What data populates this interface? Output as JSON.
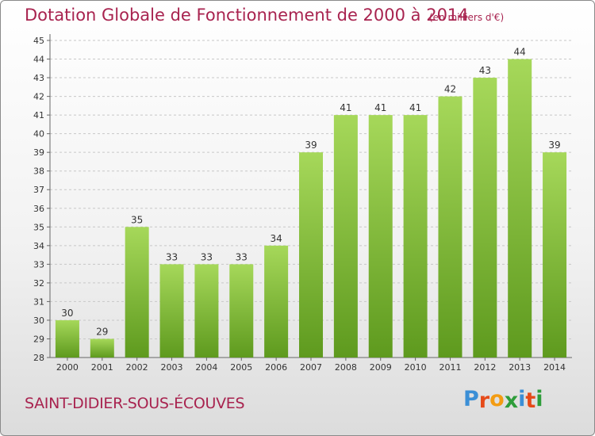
{
  "header": {
    "title": "Dotation Globale de Fonctionnement de 2000 à 2014",
    "unit": "(en milliers d'€)"
  },
  "footer": {
    "commune": "SAINT-DIDIER-SOUS-ÉCOUVES",
    "logo_letters": [
      "P",
      "r",
      "o",
      "x",
      "i",
      "t",
      "i"
    ],
    "logo_colors": [
      "#3b8fd6",
      "#e64a19",
      "#f39c12",
      "#2e9d3a",
      "#3b8fd6",
      "#e64a19",
      "#2e9d3a"
    ]
  },
  "colors": {
    "bar_top": "#a6d85a",
    "bar_bottom": "#5e9a1e",
    "grid": "#c8c8c8",
    "text": "#333333",
    "title": "#a8234f"
  },
  "chart_data": {
    "type": "bar",
    "categories": [
      "2000",
      "2001",
      "2002",
      "2003",
      "2004",
      "2005",
      "2006",
      "2007",
      "2008",
      "2009",
      "2010",
      "2011",
      "2012",
      "2013",
      "2014"
    ],
    "values": [
      30,
      29,
      35,
      33,
      33,
      33,
      34,
      39,
      41,
      41,
      41,
      42,
      43,
      44,
      39
    ],
    "ylim": [
      28,
      45
    ],
    "yticks": [
      28,
      29,
      30,
      31,
      32,
      33,
      34,
      35,
      36,
      37,
      38,
      39,
      40,
      41,
      42,
      43,
      44,
      45
    ],
    "grid": true,
    "data_labels": true
  }
}
